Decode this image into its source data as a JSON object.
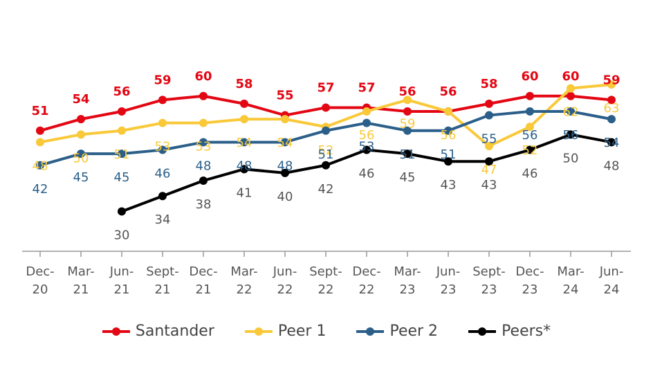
{
  "chart_data": {
    "type": "line",
    "categories": [
      "Dec-20",
      "Mar-21",
      "Jun-21",
      "Sept-21",
      "Dec-21",
      "Mar-22",
      "Jun-22",
      "Sept-22",
      "Dec-22",
      "Mar-23",
      "Jun-23",
      "Sept-23",
      "Dec-23",
      "Mar-24",
      "Jun-24"
    ],
    "series": [
      {
        "name": "Santander",
        "color": "#e30613",
        "values": [
          51,
          54,
          56,
          59,
          60,
          58,
          55,
          57,
          57,
          56,
          56,
          58,
          60,
          60,
          59
        ]
      },
      {
        "name": "Peer 1",
        "color": "#f9c93a",
        "values": [
          48,
          50,
          51,
          53,
          53,
          54,
          54,
          52,
          56,
          59,
          56,
          47,
          52,
          62,
          63
        ]
      },
      {
        "name": "Peer 2",
        "color": "#2b5f8a",
        "values": [
          42,
          45,
          45,
          46,
          48,
          48,
          48,
          51,
          53,
          51,
          51,
          55,
          56,
          56,
          54
        ]
      },
      {
        "name": "Peers*",
        "color": "#000000",
        "values": [
          null,
          null,
          30,
          34,
          38,
          41,
          40,
          42,
          46,
          45,
          43,
          43,
          46,
          50,
          48
        ]
      }
    ],
    "ylim": [
      20,
      65
    ],
    "grid": false,
    "legend": "bottom"
  }
}
